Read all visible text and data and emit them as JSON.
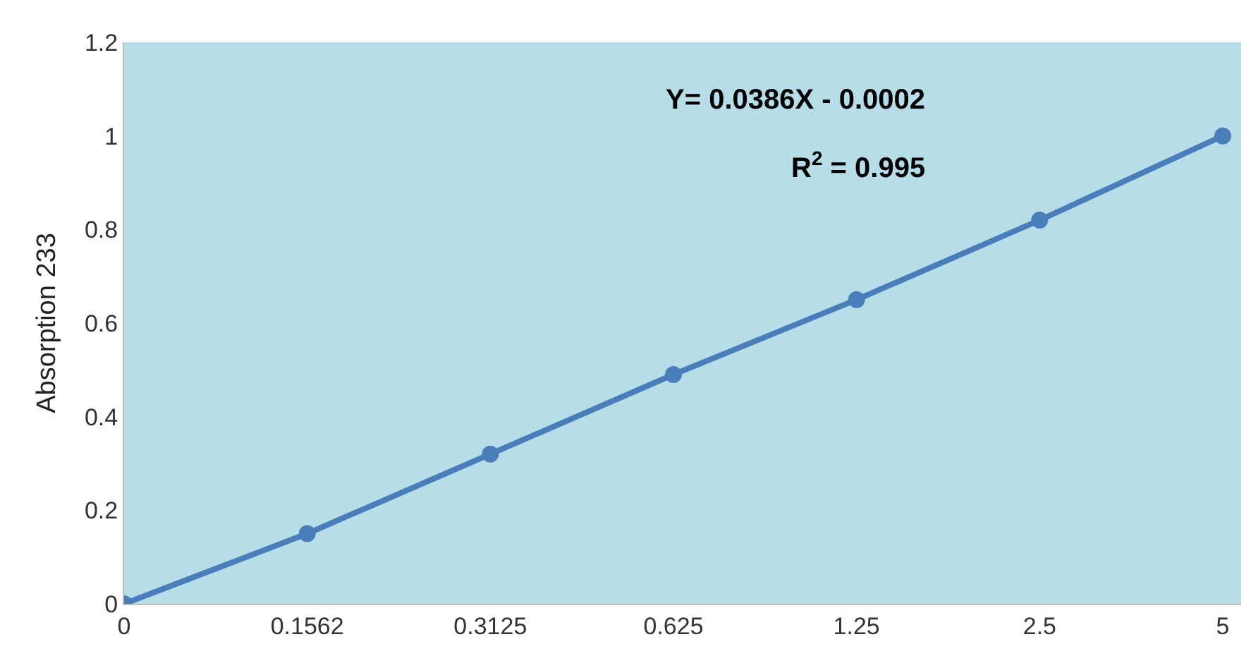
{
  "chart_data": {
    "type": "line",
    "categories": [
      "0",
      "0.1562",
      "0.3125",
      "0.625",
      "1.25",
      "2.5",
      "5"
    ],
    "series": [
      {
        "color": "#4a7ebb",
        "values": [
          0,
          0.15,
          0.32,
          0.49,
          0.65,
          0.82,
          1.0
        ]
      }
    ],
    "ylabel": "Absorption 233",
    "ylim": [
      0,
      1.2
    ],
    "yticks": [
      0,
      0.2,
      0.4,
      0.6,
      0.8,
      1,
      1.2
    ],
    "marker": "circle",
    "line_style": "solid",
    "grid": false,
    "annotations": [
      "Y= 0.0386X - 0.0002",
      "R$^{2}$ = 0.995"
    ]
  }
}
